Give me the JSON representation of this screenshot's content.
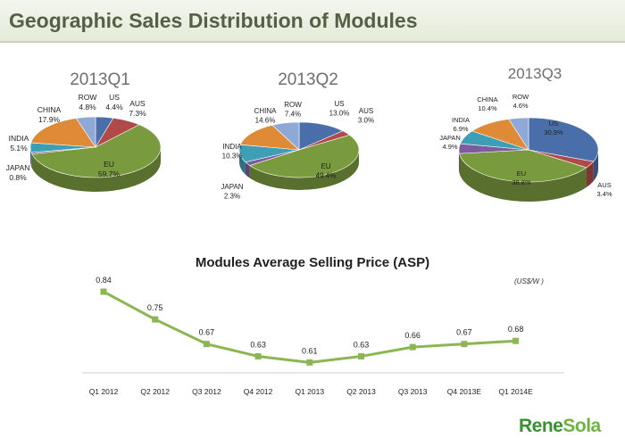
{
  "page": {
    "title": "Geographic Sales Distribution of Modules",
    "logo": {
      "part1": "Rene",
      "part2": "Sola"
    }
  },
  "colors": {
    "EU": "#7a9a3e",
    "US": "#4a6ea9",
    "AUS": "#b04a48",
    "ROW": "#8fa9d6",
    "CHINA": "#de8a37",
    "INDIA": "#3e9fb4",
    "JAPAN": "#7d5b9e",
    "line": "#8cb651"
  },
  "chart_data": [
    {
      "type": "pie",
      "title": "2013Q1",
      "slices": [
        {
          "name": "US",
          "value": 4.4,
          "label": "4.4%"
        },
        {
          "name": "AUS",
          "value": 7.3,
          "label": "7.3%"
        },
        {
          "name": "EU",
          "value": 59.7,
          "label": "59.7%"
        },
        {
          "name": "JAPAN",
          "value": 0.8,
          "label": "0.8%"
        },
        {
          "name": "INDIA",
          "value": 5.1,
          "label": "5.1%"
        },
        {
          "name": "CHINA",
          "value": 17.9,
          "label": "17.9%"
        },
        {
          "name": "ROW",
          "value": 4.8,
          "label": "4.8%"
        }
      ]
    },
    {
      "type": "pie",
      "title": "2013Q2",
      "slices": [
        {
          "name": "US",
          "value": 13.0,
          "label": "13.0%"
        },
        {
          "name": "AUS",
          "value": 3.0,
          "label": "3.0%"
        },
        {
          "name": "EU",
          "value": 49.4,
          "label": "49.4%"
        },
        {
          "name": "JAPAN",
          "value": 2.3,
          "label": "2.3%"
        },
        {
          "name": "INDIA",
          "value": 10.3,
          "label": "10.3%"
        },
        {
          "name": "CHINA",
          "value": 14.6,
          "label": "14.6%"
        },
        {
          "name": "ROW",
          "value": 7.4,
          "label": "7.4%"
        }
      ]
    },
    {
      "type": "pie",
      "title": "2013Q3",
      "slices": [
        {
          "name": "US",
          "value": 30.9,
          "label": "30.9%"
        },
        {
          "name": "AUS",
          "value": 3.4,
          "label": "3.4%"
        },
        {
          "name": "EU",
          "value": 38.8,
          "label": "38.8%"
        },
        {
          "name": "JAPAN",
          "value": 4.9,
          "label": "4.9%"
        },
        {
          "name": "INDIA",
          "value": 6.9,
          "label": "6.9%"
        },
        {
          "name": "CHINA",
          "value": 10.4,
          "label": "10.4%"
        },
        {
          "name": "ROW",
          "value": 4.6,
          "label": "4.6%"
        }
      ]
    },
    {
      "type": "line",
      "title": "Modules Average Selling Price (ASP)",
      "unit": "(US$/W )",
      "categories": [
        "Q1 2012",
        "Q2 2012",
        "Q3 2012",
        "Q4 2012",
        "Q1 2013",
        "Q2 2013",
        "Q3 2013",
        "Q4 2013E",
        "Q1 2014E"
      ],
      "values": [
        0.84,
        0.75,
        0.67,
        0.63,
        0.61,
        0.63,
        0.66,
        0.67,
        0.68
      ],
      "labels": [
        "0.84",
        "0.75",
        "0.67",
        "0.63",
        "0.61",
        "0.63",
        "0.66",
        "0.67",
        "0.68"
      ]
    }
  ]
}
